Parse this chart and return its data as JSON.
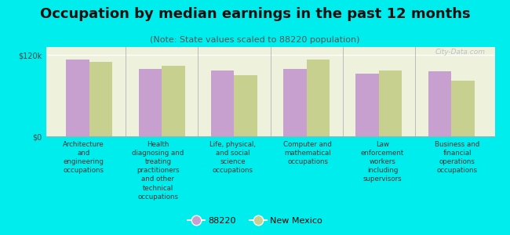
{
  "title": "Occupation by median earnings in the past 12 months",
  "subtitle": "(Note: State values scaled to 88220 population)",
  "background_outer": "#00eded",
  "background_plot": "#eef2dc",
  "categories": [
    "Architecture\nand\nengineering\noccupations",
    "Health\ndiagnosing and\ntreating\npractitioners\nand other\ntechnical\noccupations",
    "Life, physical,\nand social\nscience\noccupations",
    "Computer and\nmathematical\noccupations",
    "Law\nenforcement\nworkers\nincluding\nsupervisors",
    "Business and\nfinancial\noperations\noccupations"
  ],
  "values_88220": [
    113000,
    100000,
    97000,
    100000,
    93000,
    96000
  ],
  "values_nm": [
    110000,
    104000,
    90000,
    113000,
    97000,
    82000
  ],
  "color_88220": "#c8a0d0",
  "color_nm": "#c8d090",
  "ylabel_ticks": [
    "$0",
    "$120k"
  ],
  "ytick_vals": [
    0,
    120000
  ],
  "ylim": [
    0,
    132000
  ],
  "legend_88220": "88220",
  "legend_nm": "New Mexico",
  "bar_width": 0.32,
  "watermark": "City-Data.com",
  "title_fontsize": 13,
  "subtitle_fontsize": 8,
  "tick_fontsize": 7,
  "legend_fontsize": 8
}
